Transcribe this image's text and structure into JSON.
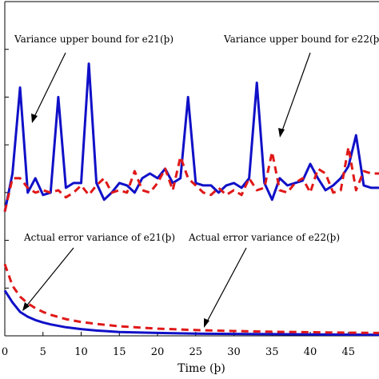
{
  "chart_data": {
    "type": "line",
    "xlabel": "Time (þ)",
    "xlim": [
      0,
      49
    ],
    "ylim": [
      0,
      7
    ],
    "x_ticks": [
      "0",
      "5",
      "10",
      "15",
      "20",
      "25",
      "30",
      "35",
      "40",
      "45"
    ],
    "grid": false,
    "series": [
      {
        "name": "Variance upper bound for e21(þ)",
        "color": "#1010c8",
        "style": "solid",
        "x": [
          0,
          1,
          2,
          3,
          4,
          5,
          6,
          7,
          8,
          9,
          10,
          11,
          12,
          13,
          14,
          15,
          16,
          17,
          18,
          19,
          20,
          21,
          22,
          23,
          24,
          25,
          26,
          27,
          28,
          29,
          30,
          31,
          32,
          33,
          34,
          35,
          36,
          37,
          38,
          39,
          40,
          41,
          42,
          43,
          44,
          45,
          46,
          47,
          48,
          49
        ],
        "values": [
          2.6,
          3.4,
          5.2,
          3.0,
          3.3,
          2.95,
          3.0,
          5.0,
          3.1,
          3.2,
          3.2,
          5.7,
          3.2,
          2.85,
          3.0,
          3.2,
          3.15,
          3.0,
          3.3,
          3.4,
          3.3,
          3.5,
          3.2,
          3.3,
          5.0,
          3.2,
          3.15,
          3.15,
          3.0,
          3.15,
          3.2,
          3.1,
          3.3,
          5.3,
          3.2,
          2.85,
          3.3,
          3.15,
          3.2,
          3.25,
          3.6,
          3.3,
          3.05,
          3.15,
          3.3,
          3.55,
          4.2,
          3.15,
          3.1,
          3.1
        ]
      },
      {
        "name": "Variance upper bound for e22(þ)",
        "color": "#e01818",
        "style": "dashed",
        "x": [
          0,
          1,
          2,
          3,
          4,
          5,
          6,
          7,
          8,
          9,
          10,
          11,
          12,
          13,
          14,
          15,
          16,
          17,
          18,
          19,
          20,
          21,
          22,
          23,
          24,
          25,
          26,
          27,
          28,
          29,
          30,
          31,
          32,
          33,
          34,
          35,
          36,
          37,
          38,
          39,
          40,
          41,
          42,
          43,
          44,
          45,
          46,
          47,
          48,
          49
        ],
        "values": [
          2.6,
          3.3,
          3.3,
          3.1,
          3.0,
          3.05,
          3.0,
          3.05,
          2.9,
          3.0,
          3.15,
          2.95,
          3.15,
          3.3,
          3.0,
          3.05,
          3.0,
          3.45,
          3.05,
          3.0,
          3.2,
          3.5,
          3.05,
          3.75,
          3.3,
          3.15,
          3.0,
          2.95,
          3.1,
          2.95,
          3.05,
          2.95,
          3.3,
          3.05,
          3.1,
          3.85,
          3.05,
          3.0,
          3.2,
          3.3,
          3.0,
          3.5,
          3.4,
          3.0,
          3.05,
          3.95,
          3.05,
          3.45,
          3.4,
          3.4
        ]
      },
      {
        "name": "Actual error variance of e21(þ)",
        "color": "#1010c8",
        "style": "solid",
        "x": [
          0,
          1,
          2,
          3,
          4,
          5,
          6,
          8,
          10,
          12,
          15,
          20,
          25,
          30,
          35,
          40,
          45,
          49
        ],
        "values": [
          0.95,
          0.7,
          0.5,
          0.4,
          0.33,
          0.28,
          0.24,
          0.18,
          0.14,
          0.11,
          0.08,
          0.06,
          0.045,
          0.04,
          0.035,
          0.03,
          0.025,
          0.02
        ]
      },
      {
        "name": "Actual error variance of e22(þ)",
        "color": "#e01818",
        "style": "dashed",
        "x": [
          0,
          1,
          2,
          3,
          4,
          5,
          6,
          8,
          10,
          12,
          15,
          20,
          25,
          30,
          35,
          40,
          45,
          49
        ],
        "values": [
          1.5,
          1.05,
          0.82,
          0.68,
          0.58,
          0.5,
          0.44,
          0.35,
          0.29,
          0.25,
          0.2,
          0.15,
          0.12,
          0.1,
          0.085,
          0.075,
          0.065,
          0.06
        ]
      }
    ],
    "annotations": [
      {
        "text": "Variance upper bound for e21(þ)"
      },
      {
        "text": "Variance upper bound for e22(þ)"
      },
      {
        "text": "Actual error variance of e21(þ)"
      },
      {
        "text": "Actual error variance of e22(þ)"
      }
    ]
  }
}
